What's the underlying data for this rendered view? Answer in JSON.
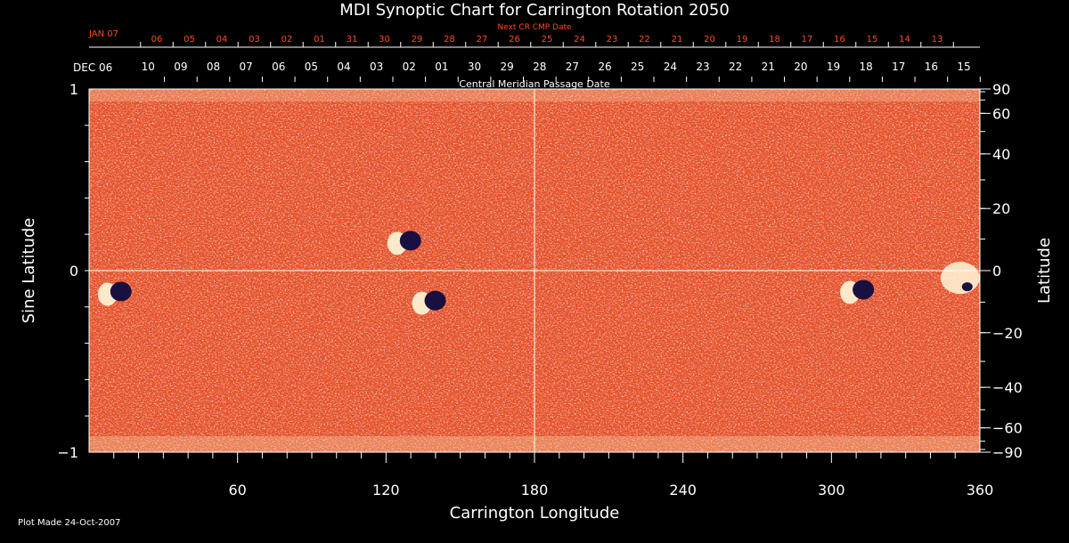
{
  "chart_data": {
    "type": "heatmap",
    "title": "MDI Synoptic Chart for Carrington Rotation 2050",
    "top_axis_label": "Next CR CMP Date",
    "top_axis_start": "JAN 07",
    "top_axis_ticks": [
      "06",
      "05",
      "04",
      "03",
      "02",
      "01",
      "31",
      "30",
      "29",
      "28",
      "27",
      "26",
      "25",
      "24",
      "23",
      "22",
      "21",
      "20",
      "19",
      "18",
      "17",
      "16",
      "15",
      "14",
      "13"
    ],
    "date_axis_label": "Central Meridian Passage Date",
    "date_axis_start": "DEC 06",
    "date_axis_ticks": [
      "10",
      "09",
      "08",
      "07",
      "06",
      "05",
      "04",
      "03",
      "02",
      "01",
      "30",
      "29",
      "28",
      "27",
      "26",
      "25",
      "24",
      "23",
      "22",
      "21",
      "20",
      "19",
      "18",
      "17",
      "16",
      "15"
    ],
    "xlabel": "Carrington Longitude",
    "xlim": [
      0,
      360
    ],
    "x_ticks": [
      60,
      120,
      180,
      240,
      300,
      360
    ],
    "ylabel_left": "Sine Latitude",
    "ylim": [
      -1,
      1
    ],
    "y_ticks_left": [
      "1",
      "0",
      "−1"
    ],
    "y_tick_values_left": [
      1,
      0,
      -1
    ],
    "ylabel_right": "Latitude",
    "y_ticks_right": [
      "90",
      "60",
      "40",
      "20",
      "0",
      "−20",
      "−40",
      "−60",
      "−90"
    ],
    "y_tick_values_right": [
      90,
      60,
      40,
      20,
      0,
      -20,
      -40,
      -60,
      -90
    ],
    "footer": "Plot Made 24-Oct-2007",
    "grid": "crosshair at longitude 180 and latitude 0",
    "colors": {
      "background": "#000000",
      "base_field": "#e8501a",
      "positive_polarity": "#fff7d8",
      "negative_polarity": "#1a1040",
      "crosshair": "#ffffff",
      "top_axis_text": "#ff4a1a",
      "axis_text": "#ffffff"
    },
    "active_regions": [
      {
        "lon": 10,
        "sinlat": -0.12,
        "polarity": "bipolar"
      },
      {
        "lon": 127,
        "sinlat": 0.16,
        "polarity": "bipolar"
      },
      {
        "lon": 137,
        "sinlat": -0.17,
        "polarity": "bipolar"
      },
      {
        "lon": 310,
        "sinlat": -0.11,
        "polarity": "bipolar"
      },
      {
        "lon": 352,
        "sinlat": -0.04,
        "polarity": "positive"
      }
    ]
  }
}
